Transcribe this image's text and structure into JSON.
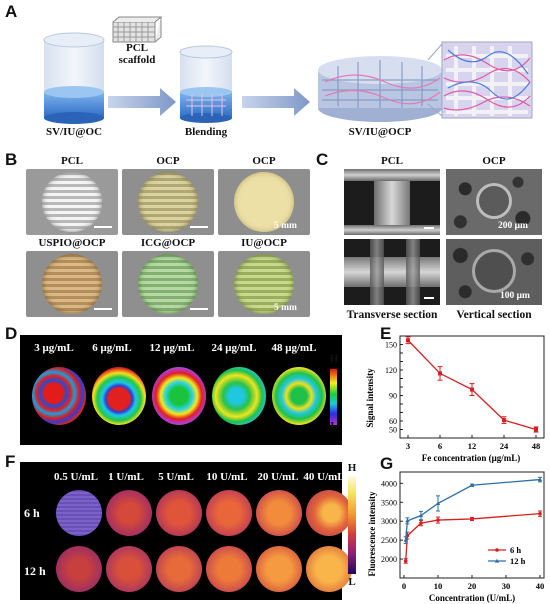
{
  "panels": {
    "a": {
      "letter": "A",
      "scaffold_label_line1": "PCL",
      "scaffold_label_line2": "scaffold",
      "step1": "SV/IU@OC",
      "step2": "Blending",
      "step3": "SV/IU@OCP"
    },
    "b": {
      "letter": "B",
      "labels": [
        "PCL",
        "OCP",
        "OCP",
        "USPIO@OCP",
        "ICG@OCP",
        "IU@OCP"
      ],
      "scale_top": "5 mm",
      "scale_bottom": "5 mm"
    },
    "c": {
      "letter": "C",
      "col1": "PCL",
      "col2": "OCP",
      "scale1": "200 μm",
      "scale2": "100 μm",
      "row1": "Transverse section",
      "row2": "Vertical section"
    },
    "d": {
      "letter": "D",
      "labels": [
        "3 μg/mL",
        "6 μg/mL",
        "12 μg/mL",
        "24 μg/mL",
        "48 μg/mL"
      ],
      "bar_high": "H",
      "bar_low": "L"
    },
    "f": {
      "letter": "F",
      "labels": [
        "0.5 U/mL",
        "1 U/mL",
        "5 U/mL",
        "10 U/mL",
        "20 U/mL",
        "40 U/mL"
      ],
      "row1": "6 h",
      "row2": "12 h",
      "bar_high": "H",
      "bar_low": "L"
    }
  },
  "chart_data": [
    {
      "panel": "E",
      "type": "line",
      "xlabel": "Fe concentration (μg/mL)",
      "ylabel": "Signal intensity",
      "categories": [
        "3",
        "6",
        "12",
        "24",
        "48"
      ],
      "ylim": [
        40,
        160
      ],
      "yticks": [
        50,
        60,
        70,
        80,
        90,
        100,
        110,
        120,
        130,
        140,
        150
      ],
      "series": [
        {
          "values": [
            155,
            116,
            97,
            61,
            50
          ],
          "errors": [
            4,
            8,
            7,
            4,
            3
          ],
          "color": "#d62020"
        }
      ]
    },
    {
      "panel": "G",
      "type": "line",
      "xlabel": "Concentration (U/mL)",
      "ylabel": "Fluorescence intensity",
      "xlim": [
        0,
        40
      ],
      "xticks": [
        0,
        10,
        20,
        30,
        40
      ],
      "ylim": [
        1500,
        4300
      ],
      "yticks": [
        2000,
        2500,
        3000,
        3500,
        4000
      ],
      "legend_position": "bottom-right",
      "series": [
        {
          "name": "6 h",
          "color": "#d62020",
          "x": [
            0.5,
            1,
            5,
            10,
            20,
            40
          ],
          "y": [
            1950,
            2620,
            2950,
            3030,
            3060,
            3200
          ],
          "errors": [
            60,
            90,
            70,
            80,
            40,
            70
          ]
        },
        {
          "name": "12 h",
          "color": "#2e6fa8",
          "x": [
            0.5,
            1,
            5,
            10,
            20,
            40
          ],
          "y": [
            2500,
            3010,
            3150,
            3470,
            3950,
            4100
          ],
          "errors": [
            90,
            80,
            110,
            200,
            30,
            60
          ]
        }
      ]
    }
  ]
}
